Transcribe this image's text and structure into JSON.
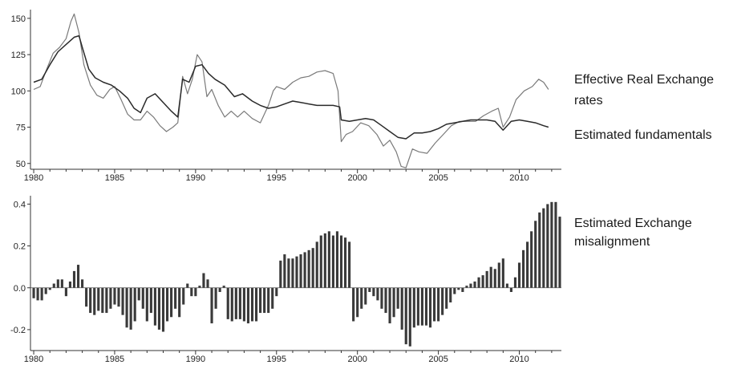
{
  "chart_data": [
    {
      "type": "line",
      "title": "",
      "xlabel": "",
      "ylabel": "",
      "xlim": [
        1979.8,
        2012.6
      ],
      "ylim": [
        46,
        156
      ],
      "xticks": [
        "1980",
        "1985",
        "1990",
        "1995",
        "2000",
        "2005",
        "2010"
      ],
      "yticks": [
        "50",
        "75",
        "100",
        "125",
        "150"
      ],
      "series": [
        {
          "name": "Effective Real Exchange rates",
          "label_lines": [
            "Effective Real Exchange",
            "rates"
          ],
          "color": "#7a7a7a",
          "points": [
            [
              1980.0,
              101
            ],
            [
              1980.4,
              103
            ],
            [
              1980.8,
              115
            ],
            [
              1981.2,
              126
            ],
            [
              1981.6,
              130
            ],
            [
              1982.0,
              136
            ],
            [
              1982.3,
              148
            ],
            [
              1982.5,
              153
            ],
            [
              1982.8,
              140
            ],
            [
              1983.1,
              118
            ],
            [
              1983.5,
              104
            ],
            [
              1983.9,
              97
            ],
            [
              1984.3,
              95
            ],
            [
              1984.7,
              101
            ],
            [
              1985.0,
              103
            ],
            [
              1985.4,
              94
            ],
            [
              1985.8,
              84
            ],
            [
              1986.2,
              80
            ],
            [
              1986.6,
              80
            ],
            [
              1987.0,
              86
            ],
            [
              1987.4,
              82
            ],
            [
              1987.8,
              76
            ],
            [
              1988.2,
              72
            ],
            [
              1988.6,
              75
            ],
            [
              1988.9,
              78
            ],
            [
              1989.2,
              110
            ],
            [
              1989.5,
              98
            ],
            [
              1989.8,
              108
            ],
            [
              1990.1,
              125
            ],
            [
              1990.4,
              120
            ],
            [
              1990.7,
              96
            ],
            [
              1991.0,
              101
            ],
            [
              1991.4,
              90
            ],
            [
              1991.8,
              82
            ],
            [
              1992.2,
              86
            ],
            [
              1992.6,
              82
            ],
            [
              1993.0,
              86
            ],
            [
              1993.5,
              81
            ],
            [
              1994.0,
              78
            ],
            [
              1994.5,
              90
            ],
            [
              1994.8,
              100
            ],
            [
              1995.0,
              103
            ],
            [
              1995.5,
              101
            ],
            [
              1996.0,
              106
            ],
            [
              1996.5,
              109
            ],
            [
              1997.0,
              110
            ],
            [
              1997.5,
              113
            ],
            [
              1998.0,
              114
            ],
            [
              1998.5,
              112
            ],
            [
              1998.8,
              100
            ],
            [
              1999.0,
              65
            ],
            [
              1999.3,
              70
            ],
            [
              1999.7,
              72
            ],
            [
              2000.2,
              78
            ],
            [
              2000.7,
              76
            ],
            [
              2001.2,
              70
            ],
            [
              2001.6,
              62
            ],
            [
              2002.0,
              66
            ],
            [
              2002.4,
              58
            ],
            [
              2002.7,
              48
            ],
            [
              2003.0,
              47
            ],
            [
              2003.4,
              60
            ],
            [
              2003.8,
              58
            ],
            [
              2004.3,
              57
            ],
            [
              2004.8,
              64
            ],
            [
              2005.3,
              70
            ],
            [
              2005.8,
              76
            ],
            [
              2006.3,
              79
            ],
            [
              2006.8,
              79
            ],
            [
              2007.3,
              79
            ],
            [
              2007.8,
              83
            ],
            [
              2008.3,
              86
            ],
            [
              2008.7,
              88
            ],
            [
              2009.0,
              75
            ],
            [
              2009.4,
              82
            ],
            [
              2009.8,
              94
            ],
            [
              2010.3,
              100
            ],
            [
              2010.8,
              103
            ],
            [
              2011.2,
              108
            ],
            [
              2011.5,
              106
            ],
            [
              2011.8,
              101
            ]
          ]
        },
        {
          "name": "Estimated fundamentals",
          "label_lines": [
            "Estimated fundamentals"
          ],
          "color": "#2a2a2a",
          "points": [
            [
              1980.0,
              106
            ],
            [
              1980.5,
              108
            ],
            [
              1981.0,
              118
            ],
            [
              1981.5,
              127
            ],
            [
              1982.0,
              132
            ],
            [
              1982.5,
              137
            ],
            [
              1982.8,
              138
            ],
            [
              1983.0,
              130
            ],
            [
              1983.4,
              115
            ],
            [
              1983.8,
              109
            ],
            [
              1984.3,
              106
            ],
            [
              1984.8,
              104
            ],
            [
              1985.3,
              100
            ],
            [
              1985.8,
              95
            ],
            [
              1986.2,
              88
            ],
            [
              1986.6,
              85
            ],
            [
              1987.0,
              95
            ],
            [
              1987.5,
              98
            ],
            [
              1988.0,
              92
            ],
            [
              1988.5,
              86
            ],
            [
              1988.9,
              82
            ],
            [
              1989.2,
              108
            ],
            [
              1989.6,
              106
            ],
            [
              1990.0,
              117
            ],
            [
              1990.4,
              118
            ],
            [
              1990.8,
              112
            ],
            [
              1991.2,
              108
            ],
            [
              1991.8,
              104
            ],
            [
              1992.4,
              96
            ],
            [
              1992.9,
              98
            ],
            [
              1993.5,
              93
            ],
            [
              1994.0,
              90
            ],
            [
              1994.5,
              88
            ],
            [
              1995.0,
              89
            ],
            [
              1995.5,
              91
            ],
            [
              1996.0,
              93
            ],
            [
              1996.5,
              92
            ],
            [
              1997.0,
              91
            ],
            [
              1997.5,
              90
            ],
            [
              1998.0,
              90
            ],
            [
              1998.5,
              90
            ],
            [
              1998.9,
              89
            ],
            [
              1999.0,
              80
            ],
            [
              1999.5,
              79
            ],
            [
              2000.0,
              80
            ],
            [
              2000.5,
              81
            ],
            [
              2001.0,
              80
            ],
            [
              2001.5,
              76
            ],
            [
              2002.0,
              72
            ],
            [
              2002.5,
              68
            ],
            [
              2003.0,
              67
            ],
            [
              2003.5,
              71
            ],
            [
              2004.0,
              71
            ],
            [
              2004.5,
              72
            ],
            [
              2005.0,
              74
            ],
            [
              2005.5,
              77
            ],
            [
              2006.0,
              78
            ],
            [
              2006.5,
              79
            ],
            [
              2007.0,
              80
            ],
            [
              2007.5,
              80
            ],
            [
              2008.0,
              80
            ],
            [
              2008.5,
              79
            ],
            [
              2009.0,
              73
            ],
            [
              2009.5,
              79
            ],
            [
              2010.0,
              80
            ],
            [
              2010.5,
              79
            ],
            [
              2011.0,
              78
            ],
            [
              2011.5,
              76
            ],
            [
              2011.8,
              75
            ]
          ]
        }
      ]
    },
    {
      "type": "bar",
      "title": "",
      "xlabel": "",
      "ylabel": "",
      "xlim": [
        1979.8,
        2012.6
      ],
      "ylim": [
        -0.3,
        0.44
      ],
      "xticks": [
        "1980",
        "1985",
        "1990",
        "1995",
        "2000",
        "2005",
        "2010"
      ],
      "yticks": [
        "0.4",
        "0.2",
        "0.0",
        "-0.2"
      ],
      "series": [
        {
          "name": "Estimated Exchange misalignment",
          "label_lines": [
            "Estimated Exchange",
            "misalignment"
          ],
          "color": "#3a3a3a",
          "x_start": 1980.0,
          "x_step": 0.25,
          "values": [
            -0.05,
            -0.06,
            -0.06,
            -0.03,
            -0.01,
            0.02,
            0.04,
            0.04,
            -0.04,
            0.03,
            0.08,
            0.11,
            0.04,
            -0.09,
            -0.12,
            -0.13,
            -0.11,
            -0.12,
            -0.12,
            -0.1,
            -0.08,
            -0.09,
            -0.13,
            -0.19,
            -0.2,
            -0.16,
            -0.06,
            -0.1,
            -0.16,
            -0.12,
            -0.18,
            -0.2,
            -0.21,
            -0.16,
            -0.14,
            -0.1,
            -0.14,
            -0.08,
            0.02,
            -0.04,
            -0.04,
            0.01,
            0.07,
            0.04,
            -0.17,
            -0.1,
            -0.02,
            0.01,
            -0.15,
            -0.16,
            -0.15,
            -0.15,
            -0.16,
            -0.17,
            -0.16,
            -0.16,
            -0.12,
            -0.12,
            -0.12,
            -0.1,
            -0.04,
            0.13,
            0.16,
            0.14,
            0.14,
            0.15,
            0.16,
            0.17,
            0.18,
            0.19,
            0.22,
            0.25,
            0.26,
            0.27,
            0.25,
            0.27,
            0.25,
            0.24,
            0.22,
            -0.16,
            -0.14,
            -0.1,
            -0.08,
            -0.02,
            -0.04,
            -0.06,
            -0.1,
            -0.12,
            -0.17,
            -0.14,
            -0.1,
            -0.2,
            -0.27,
            -0.28,
            -0.19,
            -0.18,
            -0.18,
            -0.18,
            -0.19,
            -0.16,
            -0.16,
            -0.13,
            -0.1,
            -0.07,
            -0.03,
            -0.01,
            -0.02,
            0.01,
            0.02,
            0.03,
            0.05,
            0.06,
            0.08,
            0.1,
            0.09,
            0.12,
            0.14,
            0.02,
            -0.02,
            0.05,
            0.12,
            0.18,
            0.22,
            0.27,
            0.32,
            0.36,
            0.38,
            0.4,
            0.41,
            0.41,
            0.34
          ]
        }
      ]
    }
  ]
}
